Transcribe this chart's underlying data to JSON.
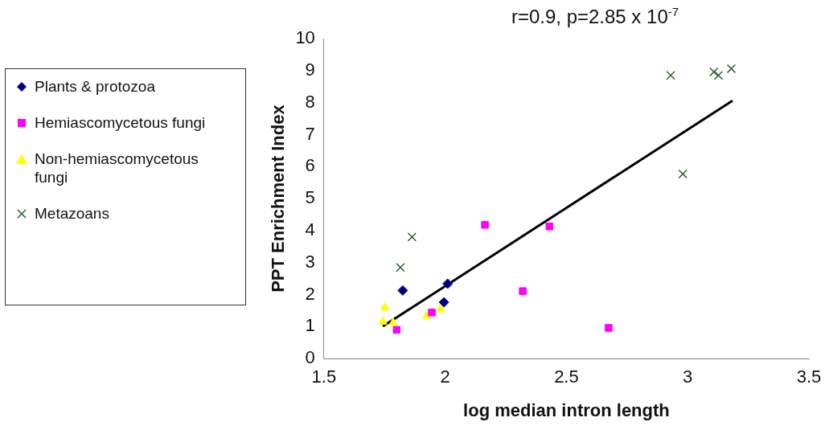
{
  "chart_data": {
    "type": "scatter",
    "title": "r=0.9, p=2.85 x 10$^{-7}$",
    "xlabel": "log median intron length",
    "ylabel": "PPT Enrichment Index",
    "xlim": [
      1.5,
      3.5
    ],
    "xticks": [
      1.5,
      2,
      2.5,
      3,
      3.5
    ],
    "ylim": [
      0,
      10
    ],
    "yticks": [
      0,
      1,
      2,
      3,
      4,
      5,
      6,
      7,
      8,
      9,
      10
    ],
    "grid": false,
    "legend": "left",
    "series": [
      {
        "name": "Plants & protozoa",
        "color": "#000080",
        "marker": "diamond",
        "x": [
          1.825,
          2.01,
          1.995
        ],
        "values": [
          2.13,
          2.34,
          1.76
        ]
      },
      {
        "name": "Hemiascomycetous fungi",
        "color": "#ff00ff",
        "marker": "square",
        "x": [
          1.8,
          1.945,
          2.164,
          2.43,
          2.32,
          2.674
        ],
        "values": [
          0.9,
          1.44,
          4.18,
          4.13,
          2.11,
          0.96
        ]
      },
      {
        "name": "Non-hemiascomycetous fungi",
        "color": "#ffff00",
        "marker": "triangle",
        "x": [
          1.751,
          1.743,
          1.785,
          1.924,
          1.98
        ],
        "values": [
          1.6,
          1.15,
          1.12,
          1.33,
          1.54
        ]
      },
      {
        "name": "Metazoans",
        "color": "#2f5f2f",
        "marker": "cross",
        "x": [
          1.815,
          1.863,
          2.93,
          2.98,
          3.108,
          3.127,
          3.18
        ],
        "values": [
          2.85,
          3.8,
          8.85,
          5.77,
          8.96,
          8.85,
          9.06
        ]
      },
      {
        "type": "line",
        "color": "#000000",
        "marker": "none",
        "line_style": "solid",
        "x": [
          1.743,
          3.185
        ],
        "values": [
          1.01,
          8.06
        ]
      }
    ]
  }
}
